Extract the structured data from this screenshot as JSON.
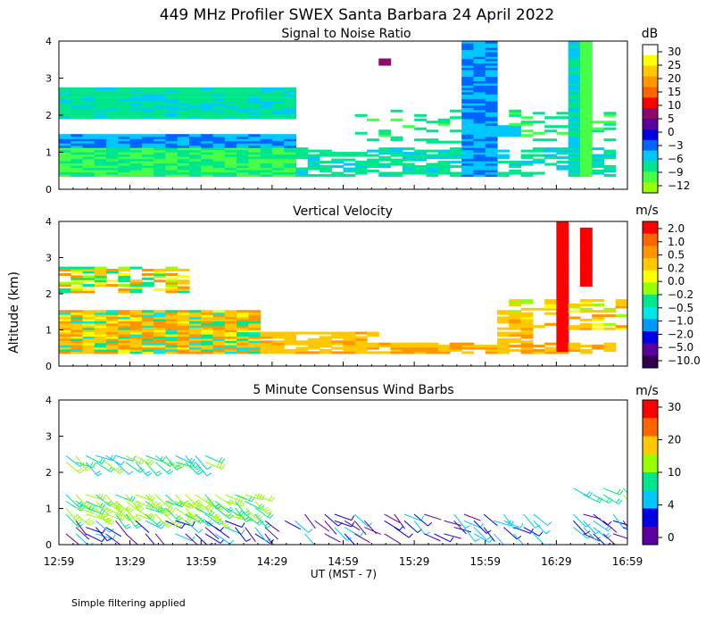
{
  "title": "449 MHz Profiler SWEX Santa Barbara 24 April 2022",
  "ylabel": "Altitude (km)",
  "xlabel": "UT  (MST - 7)",
  "footnote": "Simple filtering applied",
  "x_ticks": [
    "12:59",
    "13:29",
    "13:59",
    "14:29",
    "14:59",
    "15:29",
    "15:59",
    "16:29",
    "16:59"
  ],
  "y_ticks": [
    "0",
    "1",
    "2",
    "3",
    "4"
  ],
  "chart_data": [
    {
      "type": "heatmap",
      "title": "Signal to Noise Ratio",
      "unit": "dB",
      "x_range": [
        "12:59",
        "16:59"
      ],
      "ylim": [
        0,
        4
      ],
      "colorbar_labels": [
        "30",
        "25",
        "20",
        "15",
        "10",
        "5",
        "0",
        "−3",
        "−6",
        "−9",
        "−12"
      ],
      "colorbar_colors": [
        "#ffffff",
        "#ffff00",
        "#ffc800",
        "#ff9600",
        "#ff6400",
        "#ff0000",
        "#8c0a6e",
        "#5a00a0",
        "#0000e6",
        "#0064ff",
        "#00c8ff",
        "#00e68c",
        "#46ff46",
        "#96ff00"
      ],
      "features": [
        {
          "x_start": 0.0,
          "x_end": 3.9,
          "alt_low": 0.35,
          "alt_high": 2.7,
          "note": "dense low-level echo, weakest (-3 to -12 dB) near 0.5-1.3 km"
        },
        {
          "x_start": 2.2,
          "x_end": 2.4,
          "alt_low": 3.3,
          "alt_high": 3.5,
          "note": "isolated echo near 3.4 km"
        },
        {
          "x_start": 2.9,
          "x_end": 3.1,
          "alt_low": 3.8,
          "alt_high": 4.0,
          "note": "isolated echo near 3.9 km"
        }
      ]
    },
    {
      "type": "heatmap",
      "title": "Vertical Velocity",
      "unit": "m/s",
      "x_range": [
        "12:59",
        "16:59"
      ],
      "ylim": [
        0,
        4
      ],
      "colorbar_labels": [
        "2.0",
        "1.0",
        "0.5",
        "0.2",
        "0.0",
        "−0.2",
        "−0.5",
        "−1.0",
        "−2.0",
        "−5.0",
        "−10.0"
      ],
      "colorbar_colors": [
        "#ff0000",
        "#ff6400",
        "#ff9600",
        "#ffc800",
        "#ffff00",
        "#96ff00",
        "#00e68c",
        "#00e6e6",
        "#0096ff",
        "#0000e6",
        "#5a00a0",
        "#320050"
      ],
      "features": [
        {
          "x_start": 0.0,
          "x_end": 1.4,
          "alt_low": 0.35,
          "alt_high": 1.5,
          "note": "mostly weak positive (0.0-0.5 m/s)"
        },
        {
          "x_start": 0.0,
          "x_end": 0.9,
          "alt_low": 2.0,
          "alt_high": 2.7,
          "note": "patchy mixed velocities"
        },
        {
          "x_start": 3.5,
          "x_end": 3.55,
          "alt_low": 0.5,
          "alt_high": 4.0,
          "note": "strong updraft column (2.0 m/s)"
        }
      ]
    },
    {
      "type": "heatmap",
      "title": "5 Minute Consensus Wind Barbs",
      "unit": "m/s",
      "x_range": [
        "12:59",
        "16:59"
      ],
      "ylim": [
        0,
        4
      ],
      "colorbar_labels": [
        "30",
        "20",
        "10",
        "4",
        "0"
      ],
      "colorbar_colors": [
        "#ff0000",
        "#ff6400",
        "#ffc800",
        "#96ff00",
        "#00e68c",
        "#00c8ff",
        "#0000e6",
        "#5a00a0"
      ],
      "features": [
        {
          "x_start": 0.0,
          "x_end": 1.4,
          "alt_low": 0.8,
          "alt_high": 1.5,
          "note": "westerly winds about 8-18 m/s"
        },
        {
          "x_start": 0.0,
          "x_end": 1.1,
          "alt_low": 2.1,
          "alt_high": 2.6,
          "note": "winds about 5-15 m/s"
        },
        {
          "x_start": 1.3,
          "x_end": 2.9,
          "alt_low": 0.3,
          "alt_high": 0.9,
          "note": "light winds 0-6 m/s"
        }
      ]
    }
  ]
}
